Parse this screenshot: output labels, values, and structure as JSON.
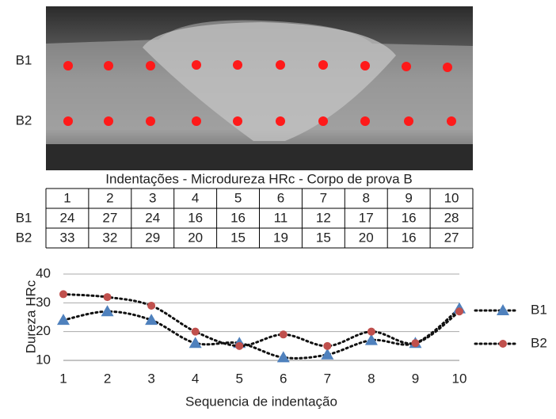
{
  "photo": {
    "rows": [
      "B1",
      "B2"
    ]
  },
  "table": {
    "title": "Indentações - Microdureza HRc - Corpo de prova B",
    "header": [
      "1",
      "2",
      "3",
      "4",
      "5",
      "6",
      "7",
      "8",
      "9",
      "10"
    ],
    "rows": [
      [
        "B1",
        24,
        27,
        24,
        16,
        16,
        11,
        12,
        17,
        16,
        28
      ],
      [
        "B2",
        33,
        32,
        29,
        20,
        15,
        19,
        15,
        20,
        16,
        27
      ]
    ]
  },
  "chart_data": {
    "type": "line",
    "x_label": "Sequencia de indentação",
    "y_label": "Dureza HRc",
    "categories": [
      "1",
      "2",
      "3",
      "4",
      "5",
      "6",
      "7",
      "8",
      "9",
      "10"
    ],
    "series": [
      {
        "name": "B1",
        "color": "#4f81bd",
        "marker": "triangle",
        "values": [
          24,
          27,
          24,
          16,
          16,
          11,
          12,
          17,
          16,
          28
        ]
      },
      {
        "name": "B2",
        "color": "#c0504d",
        "marker": "circle",
        "values": [
          33,
          32,
          29,
          20,
          15,
          19,
          15,
          20,
          16,
          27
        ]
      }
    ],
    "ylim": [
      10,
      40
    ],
    "yticks": [
      10,
      20,
      30,
      40
    ],
    "grid": true,
    "legend": "right"
  }
}
